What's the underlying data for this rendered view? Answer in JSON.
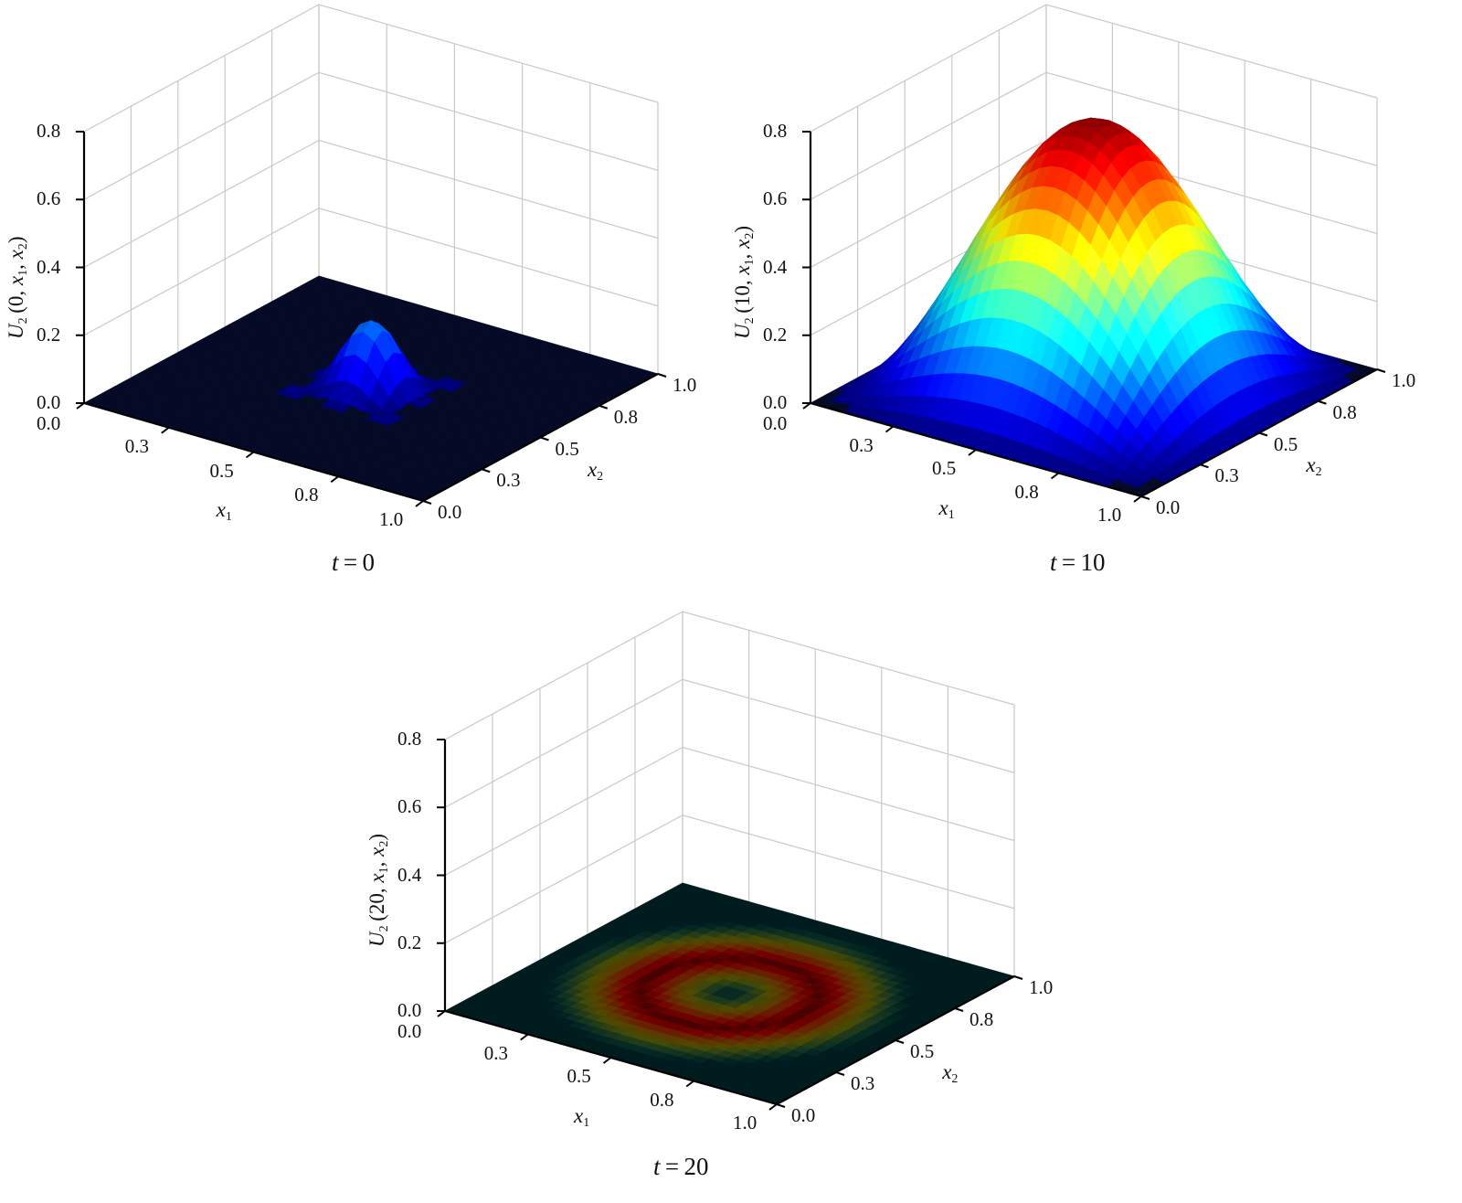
{
  "chart_data": [
    {
      "type": "surface3d",
      "caption_var": "t",
      "caption_value": "0",
      "ylabel_symbol": "U",
      "ylabel_sub": "2",
      "ylabel_args": "(0, x1, x2)",
      "x1_label": "x1",
      "x2_label": "x2",
      "x1_ticks": [
        "0.0",
        "0.3",
        "0.5",
        "0.8",
        "1.0"
      ],
      "x2_ticks": [
        "0.0",
        "0.3",
        "0.5",
        "0.8",
        "1.0"
      ],
      "z_ticks": [
        "0.0",
        "0.2",
        "0.4",
        "0.6",
        "0.8"
      ],
      "zlim": [
        0,
        0.8
      ],
      "grid": true,
      "surface": {
        "shape": "localized-bump",
        "peak": 0.2,
        "center": [
          0.5,
          0.5
        ],
        "width": 0.15
      }
    },
    {
      "type": "surface3d",
      "caption_var": "t",
      "caption_value": "10",
      "ylabel_symbol": "U",
      "ylabel_sub": "2",
      "ylabel_args": "(10, x1, x2)",
      "x1_label": "x1",
      "x2_label": "x2",
      "x1_ticks": [
        "0.0",
        "0.3",
        "0.5",
        "0.8",
        "1.0"
      ],
      "x2_ticks": [
        "0.0",
        "0.3",
        "0.5",
        "0.8",
        "1.0"
      ],
      "z_ticks": [
        "0.0",
        "0.2",
        "0.4",
        "0.6",
        "0.8"
      ],
      "zlim": [
        0,
        0.8
      ],
      "grid": true,
      "surface": {
        "shape": "sine-product",
        "peak": 0.78,
        "center": [
          0.5,
          0.5
        ]
      }
    },
    {
      "type": "surface3d",
      "caption_var": "t",
      "caption_value": "20",
      "ylabel_symbol": "U",
      "ylabel_sub": "2",
      "ylabel_args": "(20, x1, x2)",
      "x1_label": "x1",
      "x2_label": "x2",
      "x1_ticks": [
        "0.0",
        "0.3",
        "0.5",
        "0.8",
        "1.0"
      ],
      "x2_ticks": [
        "0.0",
        "0.3",
        "0.5",
        "0.8",
        "1.0"
      ],
      "z_ticks": [
        "0.0",
        "0.2",
        "0.4",
        "0.6",
        "0.8"
      ],
      "zlim": [
        0,
        0.8
      ],
      "grid": true,
      "surface": {
        "shape": "flat-ring",
        "peak": 0.0,
        "center": [
          0.5,
          0.5
        ]
      }
    }
  ]
}
